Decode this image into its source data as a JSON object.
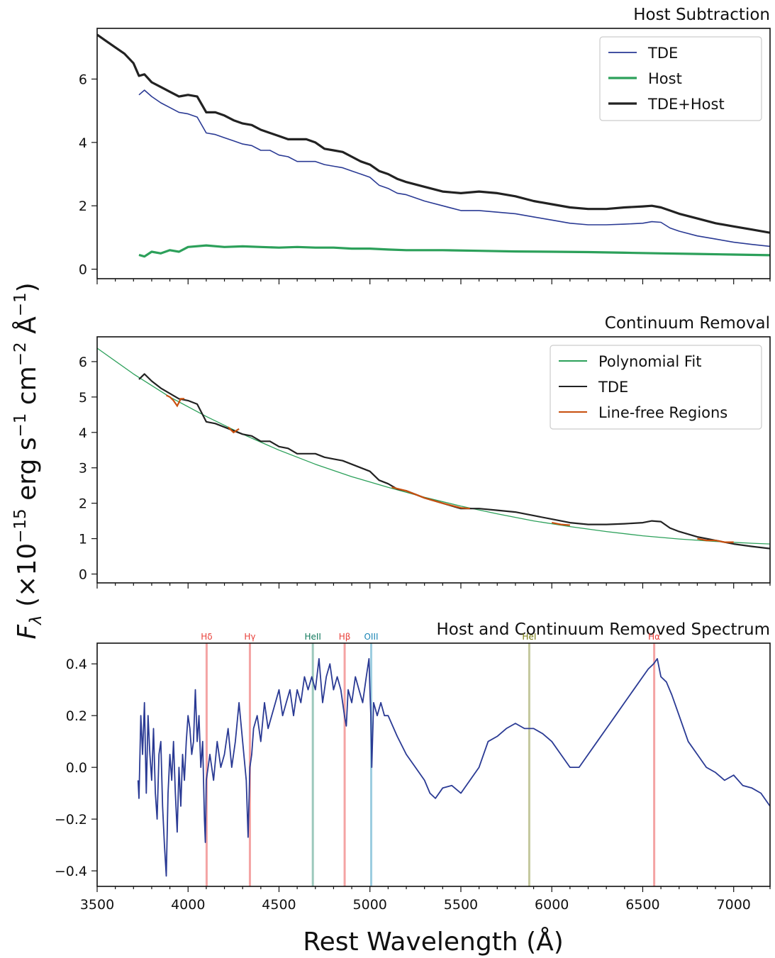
{
  "figure": {
    "xlabel": "Rest Wavelength (Å)",
    "ylabel": "F_λ (×10^−15 erg s^−1 cm^−2 Å^−1)"
  },
  "chart_data": [
    {
      "type": "line",
      "title": "Host Subtraction",
      "xlim": [
        3500,
        7200
      ],
      "ylim": [
        -0.3,
        7.6
      ],
      "xticks": [
        3500,
        4000,
        4500,
        5000,
        5500,
        6000,
        6500,
        7000
      ],
      "yticks": [
        0,
        2,
        4,
        6
      ],
      "ytick_labels": [
        "0",
        "2",
        "4",
        "6"
      ],
      "show_xtick_labels": false,
      "legend": "top-right",
      "series": [
        {
          "name": "TDE",
          "color": "#2a3a94",
          "width": 1.6,
          "x": [
            3730,
            3760,
            3800,
            3850,
            3900,
            3950,
            4000,
            4050,
            4100,
            4150,
            4200,
            4250,
            4300,
            4350,
            4400,
            4450,
            4500,
            4550,
            4600,
            4650,
            4700,
            4750,
            4800,
            4850,
            4900,
            4950,
            5000,
            5050,
            5100,
            5150,
            5200,
            5300,
            5400,
            5500,
            5600,
            5700,
            5800,
            5900,
            6000,
            6100,
            6200,
            6300,
            6400,
            6500,
            6550,
            6600,
            6650,
            6700,
            6800,
            6900,
            7000,
            7100,
            7200
          ],
          "y": [
            5.5,
            5.65,
            5.45,
            5.25,
            5.1,
            4.95,
            4.9,
            4.8,
            4.3,
            4.25,
            4.15,
            4.05,
            3.95,
            3.9,
            3.75,
            3.75,
            3.6,
            3.55,
            3.4,
            3.4,
            3.4,
            3.3,
            3.25,
            3.2,
            3.1,
            3.0,
            2.9,
            2.65,
            2.55,
            2.4,
            2.35,
            2.15,
            2.0,
            1.85,
            1.85,
            1.8,
            1.75,
            1.65,
            1.55,
            1.45,
            1.4,
            1.4,
            1.42,
            1.45,
            1.5,
            1.48,
            1.3,
            1.2,
            1.05,
            0.95,
            0.85,
            0.78,
            0.72
          ]
        },
        {
          "name": "Host",
          "color": "#2ca05a",
          "width": 3.2,
          "x": [
            3730,
            3760,
            3800,
            3850,
            3900,
            3950,
            4000,
            4100,
            4200,
            4300,
            4400,
            4500,
            4600,
            4700,
            4800,
            4900,
            5000,
            5100,
            5200,
            5400,
            5600,
            5800,
            6000,
            6200,
            6400,
            6600,
            6800,
            7000,
            7200
          ],
          "y": [
            0.45,
            0.4,
            0.55,
            0.5,
            0.6,
            0.55,
            0.7,
            0.75,
            0.7,
            0.72,
            0.7,
            0.68,
            0.7,
            0.68,
            0.68,
            0.65,
            0.65,
            0.62,
            0.6,
            0.6,
            0.58,
            0.56,
            0.55,
            0.54,
            0.52,
            0.5,
            0.48,
            0.46,
            0.44
          ]
        },
        {
          "name": "TDE+Host",
          "color": "#222222",
          "width": 3.2,
          "x": [
            3500,
            3550,
            3600,
            3650,
            3700,
            3730,
            3760,
            3800,
            3850,
            3900,
            3950,
            4000,
            4050,
            4100,
            4150,
            4200,
            4250,
            4300,
            4350,
            4400,
            4450,
            4500,
            4550,
            4600,
            4650,
            4700,
            4750,
            4800,
            4850,
            4900,
            4950,
            5000,
            5050,
            5100,
            5150,
            5200,
            5300,
            5400,
            5500,
            5600,
            5700,
            5800,
            5900,
            6000,
            6100,
            6200,
            6300,
            6400,
            6500,
            6550,
            6600,
            6650,
            6700,
            6800,
            6900,
            7000,
            7100,
            7200
          ],
          "y": [
            7.4,
            7.2,
            7.0,
            6.8,
            6.5,
            6.1,
            6.15,
            5.9,
            5.75,
            5.6,
            5.45,
            5.5,
            5.45,
            4.95,
            4.95,
            4.85,
            4.7,
            4.6,
            4.55,
            4.4,
            4.3,
            4.2,
            4.1,
            4.1,
            4.1,
            4.0,
            3.8,
            3.75,
            3.7,
            3.55,
            3.4,
            3.3,
            3.1,
            3.0,
            2.85,
            2.75,
            2.6,
            2.45,
            2.4,
            2.45,
            2.4,
            2.3,
            2.15,
            2.05,
            1.95,
            1.9,
            1.9,
            1.95,
            1.98,
            2.0,
            1.95,
            1.85,
            1.75,
            1.6,
            1.45,
            1.35,
            1.25,
            1.15
          ]
        }
      ]
    },
    {
      "type": "line",
      "title": "Continuum Removal",
      "xlim": [
        3500,
        7200
      ],
      "ylim": [
        -0.25,
        6.7
      ],
      "xticks": [
        3500,
        4000,
        4500,
        5000,
        5500,
        6000,
        6500,
        7000
      ],
      "yticks": [
        0,
        1,
        2,
        3,
        4,
        5,
        6
      ],
      "ytick_labels": [
        "0",
        "1",
        "2",
        "3",
        "4",
        "5",
        "6"
      ],
      "show_xtick_labels": false,
      "legend": "top-right",
      "series": [
        {
          "name": "Polynomial Fit",
          "color": "#2ca05a",
          "width": 1.3,
          "x": [
            3500,
            3700,
            3900,
            4100,
            4300,
            4500,
            4700,
            4900,
            5100,
            5300,
            5500,
            5700,
            5900,
            6100,
            6300,
            6500,
            6700,
            6900,
            7100,
            7200
          ],
          "y": [
            6.38,
            5.65,
            5.0,
            4.45,
            3.95,
            3.5,
            3.1,
            2.75,
            2.45,
            2.17,
            1.92,
            1.7,
            1.5,
            1.34,
            1.2,
            1.08,
            0.99,
            0.92,
            0.87,
            0.85
          ]
        },
        {
          "name": "TDE",
          "color": "#222222",
          "width": 2.2,
          "x": [
            3730,
            3760,
            3800,
            3850,
            3900,
            3950,
            4000,
            4050,
            4100,
            4150,
            4200,
            4250,
            4300,
            4350,
            4400,
            4450,
            4500,
            4550,
            4600,
            4650,
            4700,
            4750,
            4800,
            4850,
            4900,
            4950,
            5000,
            5050,
            5100,
            5150,
            5200,
            5300,
            5400,
            5500,
            5600,
            5700,
            5800,
            5900,
            6000,
            6100,
            6200,
            6300,
            6400,
            6500,
            6550,
            6600,
            6650,
            6700,
            6800,
            6900,
            7000,
            7100,
            7200
          ],
          "y": [
            5.5,
            5.65,
            5.45,
            5.25,
            5.1,
            4.95,
            4.9,
            4.8,
            4.3,
            4.25,
            4.15,
            4.05,
            3.95,
            3.9,
            3.75,
            3.75,
            3.6,
            3.55,
            3.4,
            3.4,
            3.4,
            3.3,
            3.25,
            3.2,
            3.1,
            3.0,
            2.9,
            2.65,
            2.55,
            2.4,
            2.35,
            2.15,
            2.0,
            1.85,
            1.85,
            1.8,
            1.75,
            1.65,
            1.55,
            1.45,
            1.4,
            1.4,
            1.42,
            1.45,
            1.5,
            1.48,
            1.3,
            1.2,
            1.05,
            0.95,
            0.85,
            0.78,
            0.72
          ]
        }
      ],
      "segments": [
        {
          "series": "Line-free Regions",
          "color": "#c8500f",
          "x": [
            3880,
            3900,
            3920,
            3940,
            3960,
            3980
          ],
          "y": [
            5.05,
            5.0,
            4.9,
            4.75,
            4.95,
            4.95
          ]
        },
        {
          "series": "Line-free Regions",
          "color": "#c8500f",
          "x": [
            4220,
            4250,
            4280
          ],
          "y": [
            4.15,
            4.0,
            4.1
          ]
        },
        {
          "series": "Line-free Regions",
          "color": "#c8500f",
          "x": [
            5120,
            5200,
            5300,
            5400,
            5500,
            5550
          ],
          "y": [
            2.45,
            2.35,
            2.15,
            2.0,
            1.87,
            1.85
          ]
        },
        {
          "series": "Line-free Regions",
          "color": "#c8500f",
          "x": [
            6000,
            6050,
            6100
          ],
          "y": [
            1.45,
            1.4,
            1.38
          ]
        },
        {
          "series": "Line-free Regions",
          "color": "#c8500f",
          "x": [
            6800,
            6850,
            6900,
            6950,
            7000
          ],
          "y": [
            1.0,
            0.95,
            0.95,
            0.9,
            0.9
          ]
        }
      ],
      "legend_entries": [
        {
          "name": "Polynomial Fit",
          "color": "#2ca05a"
        },
        {
          "name": "TDE",
          "color": "#222222"
        },
        {
          "name": "Line-free Regions",
          "color": "#c8500f"
        }
      ]
    },
    {
      "type": "line",
      "title": "Host and Continuum Removed Spectrum",
      "xlim": [
        3500,
        7200
      ],
      "ylim": [
        -0.46,
        0.48
      ],
      "xticks": [
        3500,
        4000,
        4500,
        5000,
        5500,
        6000,
        6500,
        7000
      ],
      "xtick_labels": [
        "3500",
        "4000",
        "4500",
        "5000",
        "5500",
        "6000",
        "6500",
        "7000"
      ],
      "yticks": [
        -0.4,
        -0.2,
        0.0,
        0.2,
        0.4
      ],
      "ytick_labels": [
        "−0.4",
        "−0.2",
        "0.0",
        "0.2",
        "0.4"
      ],
      "show_xtick_labels": true,
      "series": [
        {
          "color": "#2a3a94",
          "width": 1.8,
          "x": [
            3725,
            3730,
            3740,
            3750,
            3760,
            3770,
            3780,
            3790,
            3800,
            3810,
            3820,
            3830,
            3840,
            3850,
            3860,
            3870,
            3880,
            3890,
            3900,
            3910,
            3920,
            3930,
            3940,
            3950,
            3960,
            3970,
            3980,
            3990,
            4000,
            4010,
            4020,
            4030,
            4040,
            4050,
            4060,
            4070,
            4080,
            4090,
            4095,
            4100,
            4110,
            4120,
            4140,
            4160,
            4180,
            4200,
            4220,
            4240,
            4260,
            4280,
            4300,
            4320,
            4330,
            4340,
            4350,
            4360,
            4380,
            4400,
            4420,
            4440,
            4460,
            4480,
            4500,
            4520,
            4540,
            4560,
            4580,
            4600,
            4620,
            4640,
            4660,
            4680,
            4700,
            4720,
            4740,
            4760,
            4780,
            4800,
            4820,
            4840,
            4860,
            4870,
            4880,
            4900,
            4920,
            4940,
            4960,
            4980,
            4995,
            5000,
            5005,
            5010,
            5020,
            5040,
            5060,
            5080,
            5100,
            5150,
            5200,
            5250,
            5300,
            5330,
            5360,
            5400,
            5450,
            5500,
            5550,
            5600,
            5650,
            5700,
            5750,
            5800,
            5850,
            5900,
            5950,
            6000,
            6050,
            6100,
            6150,
            6200,
            6250,
            6300,
            6350,
            6400,
            6450,
            6500,
            6530,
            6560,
            6580,
            6600,
            6630,
            6660,
            6700,
            6750,
            6800,
            6850,
            6900,
            6950,
            7000,
            7050,
            7100,
            7150,
            7200
          ],
          "y": [
            -0.05,
            -0.12,
            0.2,
            0.05,
            0.25,
            -0.1,
            0.2,
            0.05,
            -0.05,
            0.15,
            -0.1,
            -0.2,
            0.05,
            0.1,
            -0.15,
            -0.3,
            -0.42,
            -0.1,
            0.05,
            -0.05,
            0.1,
            -0.1,
            -0.25,
            0.0,
            -0.15,
            0.05,
            -0.05,
            0.1,
            0.2,
            0.15,
            0.05,
            0.1,
            0.3,
            0.1,
            0.2,
            0.0,
            0.1,
            -0.2,
            -0.29,
            -0.05,
            0.0,
            0.05,
            -0.05,
            0.1,
            0.0,
            0.05,
            0.15,
            0.0,
            0.1,
            0.25,
            0.1,
            -0.05,
            -0.27,
            0.0,
            0.05,
            0.15,
            0.2,
            0.1,
            0.25,
            0.15,
            0.2,
            0.25,
            0.3,
            0.2,
            0.25,
            0.3,
            0.2,
            0.3,
            0.25,
            0.35,
            0.3,
            0.35,
            0.3,
            0.42,
            0.25,
            0.35,
            0.4,
            0.3,
            0.35,
            0.3,
            0.2,
            0.16,
            0.3,
            0.25,
            0.35,
            0.3,
            0.25,
            0.35,
            0.42,
            0.3,
            0.2,
            0.0,
            0.25,
            0.2,
            0.25,
            0.2,
            0.2,
            0.12,
            0.05,
            0.0,
            -0.05,
            -0.1,
            -0.12,
            -0.08,
            -0.07,
            -0.1,
            -0.05,
            0.0,
            0.1,
            0.12,
            0.15,
            0.17,
            0.15,
            0.15,
            0.13,
            0.1,
            0.05,
            0.0,
            0.0,
            0.05,
            0.1,
            0.15,
            0.2,
            0.25,
            0.3,
            0.35,
            0.38,
            0.4,
            0.42,
            0.35,
            0.33,
            0.28,
            0.2,
            0.1,
            0.05,
            0.0,
            -0.02,
            -0.05,
            -0.03,
            -0.07,
            -0.08,
            -0.1,
            -0.15
          ]
        }
      ],
      "reference_lines": [
        {
          "label": "Hδ",
          "x": 4102,
          "color": "#f4a4a4",
          "label_color": "#e8403a"
        },
        {
          "label": "Hγ",
          "x": 4340,
          "color": "#f4a4a4",
          "label_color": "#e8403a"
        },
        {
          "label": "HeII",
          "x": 4686,
          "color": "#9cc8bc",
          "label_color": "#127a5e"
        },
        {
          "label": "Hβ",
          "x": 4861,
          "color": "#f4a4a4",
          "label_color": "#e8403a"
        },
        {
          "label": "OIII",
          "x": 5007,
          "color": "#9ccde0",
          "label_color": "#1a85b5"
        },
        {
          "label": "HeI",
          "x": 5876,
          "color": "#c4c89e",
          "label_color": "#777a10"
        },
        {
          "label": "Hα",
          "x": 6563,
          "color": "#f4a4a4",
          "label_color": "#e8403a"
        }
      ]
    }
  ]
}
